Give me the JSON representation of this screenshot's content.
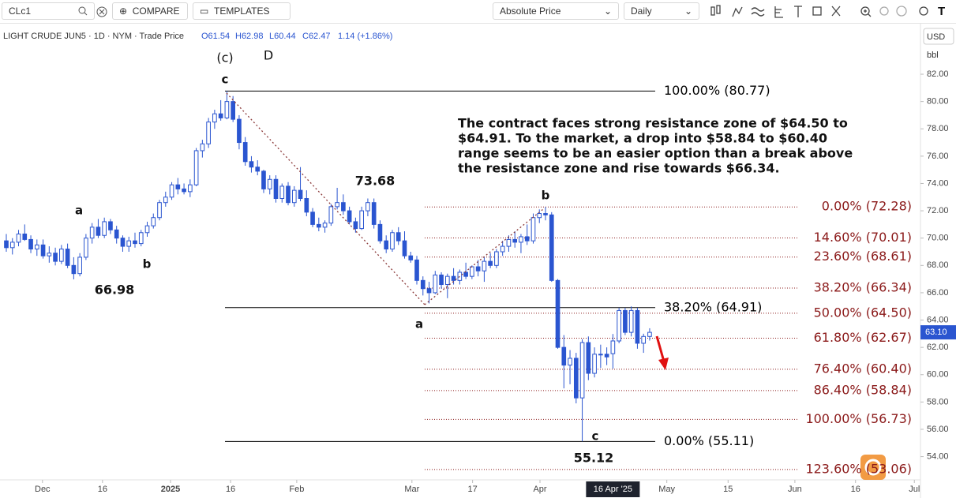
{
  "toolbar": {
    "symbol": "CLc1",
    "compare": "COMPARE",
    "templates": "TEMPLATES",
    "price_mode": "Absolute Price",
    "interval": "Daily"
  },
  "chart_data": {
    "type": "candlestick",
    "header": {
      "instrument": "LIGHT CRUDE JUN5 · 1D · NYM · Trade Price",
      "open": "O61.54",
      "high": "H62.98",
      "low": "L60.44",
      "close": "C62.47",
      "change": "1.14 (+1.86%)"
    },
    "currency": "USD",
    "unit": "bbl",
    "color": "#2a55d0",
    "up_color": "#ffffff",
    "candles": [
      [
        69.8,
        70.3,
        69.0,
        69.3
      ],
      [
        69.3,
        70.0,
        68.8,
        69.7
      ],
      [
        69.7,
        70.6,
        69.4,
        70.3
      ],
      [
        70.3,
        71.0,
        69.8,
        69.9
      ],
      [
        69.9,
        70.2,
        68.9,
        69.2
      ],
      [
        69.2,
        69.9,
        68.7,
        69.5
      ],
      [
        69.5,
        69.9,
        68.5,
        68.7
      ],
      [
        68.7,
        69.4,
        68.2,
        68.9
      ],
      [
        68.9,
        69.3,
        68.0,
        68.3
      ],
      [
        68.3,
        69.5,
        68.1,
        69.2
      ],
      [
        69.2,
        69.6,
        67.8,
        68.0
      ],
      [
        68.0,
        68.6,
        66.98,
        67.4
      ],
      [
        67.4,
        68.9,
        67.2,
        68.6
      ],
      [
        68.6,
        70.3,
        68.4,
        70.0
      ],
      [
        70.0,
        71.1,
        69.6,
        70.8
      ],
      [
        70.8,
        71.4,
        70.0,
        70.2
      ],
      [
        70.2,
        71.5,
        70.0,
        71.2
      ],
      [
        71.2,
        71.4,
        70.3,
        70.6
      ],
      [
        70.6,
        70.9,
        69.6,
        70.0
      ],
      [
        70.0,
        70.2,
        69.0,
        69.4
      ],
      [
        69.4,
        70.1,
        69.0,
        69.8
      ],
      [
        69.8,
        70.4,
        69.3,
        69.6
      ],
      [
        69.6,
        70.6,
        69.4,
        70.4
      ],
      [
        70.4,
        71.2,
        70.1,
        70.9
      ],
      [
        70.9,
        71.8,
        70.7,
        71.5
      ],
      [
        71.5,
        72.8,
        71.3,
        72.6
      ],
      [
        72.6,
        73.4,
        72.3,
        73.0
      ],
      [
        73.0,
        74.1,
        72.8,
        73.9
      ],
      [
        73.9,
        74.4,
        73.2,
        73.6
      ],
      [
        73.6,
        74.0,
        73.2,
        73.4
      ],
      [
        73.4,
        74.3,
        73.0,
        73.9
      ],
      [
        73.9,
        76.6,
        73.8,
        76.4
      ],
      [
        76.4,
        77.2,
        75.9,
        76.9
      ],
      [
        76.9,
        78.8,
        76.6,
        78.5
      ],
      [
        78.5,
        79.4,
        78.0,
        79.1
      ],
      [
        79.1,
        80.1,
        78.6,
        78.8
      ],
      [
        78.8,
        80.77,
        78.7,
        80.0
      ],
      [
        80.0,
        80.4,
        78.5,
        78.7
      ],
      [
        78.7,
        79.0,
        76.5,
        77.0
      ],
      [
        77.0,
        77.4,
        75.3,
        75.6
      ],
      [
        75.6,
        76.0,
        74.8,
        75.2
      ],
      [
        75.2,
        75.7,
        74.6,
        74.9
      ],
      [
        74.9,
        75.0,
        73.3,
        73.6
      ],
      [
        73.6,
        74.6,
        73.2,
        74.3
      ],
      [
        74.3,
        74.6,
        72.6,
        72.9
      ],
      [
        72.9,
        74.0,
        72.6,
        73.8
      ],
      [
        73.8,
        74.1,
        72.4,
        72.6
      ],
      [
        72.6,
        73.8,
        72.3,
        73.5
      ],
      [
        73.5,
        75.2,
        72.7,
        72.9
      ],
      [
        72.9,
        73.5,
        71.6,
        71.9
      ],
      [
        71.9,
        72.2,
        70.8,
        71.0
      ],
      [
        71.0,
        71.5,
        70.5,
        70.8
      ],
      [
        70.8,
        71.3,
        70.4,
        71.1
      ],
      [
        71.1,
        72.5,
        70.9,
        72.3
      ],
      [
        72.3,
        73.68,
        72.1,
        72.6
      ],
      [
        72.6,
        73.2,
        71.7,
        72.0
      ],
      [
        72.0,
        72.3,
        71.0,
        71.2
      ],
      [
        71.2,
        71.5,
        70.4,
        70.7
      ],
      [
        70.7,
        72.3,
        70.6,
        72.0
      ],
      [
        72.0,
        72.9,
        71.6,
        72.6
      ],
      [
        72.6,
        72.9,
        70.7,
        71.0
      ],
      [
        71.0,
        71.3,
        69.6,
        69.8
      ],
      [
        69.8,
        70.2,
        68.9,
        69.2
      ],
      [
        69.2,
        70.6,
        69.0,
        70.4
      ],
      [
        70.4,
        70.8,
        69.5,
        69.8
      ],
      [
        69.8,
        70.5,
        68.5,
        68.7
      ],
      [
        68.7,
        69.0,
        68.2,
        68.4
      ],
      [
        68.4,
        68.7,
        66.6,
        66.9
      ],
      [
        66.9,
        67.2,
        65.8,
        66.3
      ],
      [
        66.3,
        66.8,
        65.22,
        66.0
      ],
      [
        66.0,
        67.6,
        65.9,
        67.3
      ],
      [
        67.3,
        67.5,
        66.3,
        66.6
      ],
      [
        66.6,
        67.4,
        65.6,
        67.2
      ],
      [
        67.2,
        67.8,
        66.6,
        66.9
      ],
      [
        66.9,
        67.7,
        66.6,
        67.5
      ],
      [
        67.5,
        68.2,
        67.0,
        67.2
      ],
      [
        67.2,
        68.0,
        67.0,
        67.9
      ],
      [
        67.9,
        68.4,
        67.2,
        67.6
      ],
      [
        67.6,
        68.6,
        66.8,
        68.3
      ],
      [
        68.3,
        68.9,
        67.8,
        68.0
      ],
      [
        68.0,
        69.2,
        67.8,
        69.0
      ],
      [
        69.0,
        69.8,
        68.7,
        69.4
      ],
      [
        69.4,
        70.2,
        69.0,
        69.9
      ],
      [
        69.9,
        70.5,
        69.3,
        69.7
      ],
      [
        69.7,
        70.3,
        68.9,
        70.1
      ],
      [
        70.1,
        71.0,
        69.5,
        69.8
      ],
      [
        69.8,
        71.8,
        69.6,
        71.5
      ],
      [
        71.5,
        72.1,
        71.1,
        71.8
      ],
      [
        71.8,
        72.28,
        71.3,
        71.7
      ],
      [
        71.7,
        71.9,
        66.8,
        66.9
      ],
      [
        66.9,
        67.0,
        61.9,
        62.0
      ],
      [
        62.0,
        62.9,
        59.0,
        60.7
      ],
      [
        60.7,
        61.8,
        59.3,
        61.2
      ],
      [
        61.2,
        61.6,
        57.9,
        58.3
      ],
      [
        58.3,
        62.6,
        55.12,
        62.35
      ],
      [
        62.35,
        62.8,
        59.6,
        60.1
      ],
      [
        60.1,
        62.0,
        59.8,
        61.5
      ],
      [
        61.5,
        62.2,
        60.5,
        61.5
      ],
      [
        61.5,
        62.0,
        60.7,
        61.3
      ],
      [
        61.54,
        62.98,
        60.44,
        62.47
      ],
      [
        62.47,
        64.9,
        62.3,
        64.7
      ],
      [
        64.7,
        64.9,
        62.9,
        63.1
      ],
      [
        63.1,
        65.0,
        62.8,
        64.7
      ],
      [
        64.7,
        64.9,
        61.9,
        62.3
      ],
      [
        62.3,
        63.0,
        61.6,
        62.8
      ],
      [
        62.8,
        63.4,
        62.5,
        63.1
      ]
    ],
    "xlim": [
      -1.03,
      149.2
    ],
    "xticks": [
      {
        "value": 5.9,
        "label": "Dec"
      },
      {
        "value": 15.7,
        "label": "16"
      },
      {
        "value": 26.8,
        "label": "2025"
      },
      {
        "value": 36.6,
        "label": "16"
      },
      {
        "value": 47.4,
        "label": "Feb"
      },
      {
        "value": 66.2,
        "label": "Mar"
      },
      {
        "value": 76.1,
        "label": "17"
      },
      {
        "value": 87.1,
        "label": "Apr"
      },
      {
        "value": 107.8,
        "label": "May"
      },
      {
        "value": 117.8,
        "label": "15"
      },
      {
        "value": 128.7,
        "label": "Jun"
      },
      {
        "value": 138.6,
        "label": "16"
      },
      {
        "value": 148.2,
        "label": "Jul"
      }
    ],
    "crosshair": {
      "value": 99,
      "label": "16 Apr '25"
    },
    "ylim": [
      52.3,
      85.7
    ],
    "yticks": [
      {
        "value": 54,
        "label": "54.00"
      },
      {
        "value": 56,
        "label": "56.00"
      },
      {
        "value": 58,
        "label": "58.00"
      },
      {
        "value": 60,
        "label": "60.00"
      },
      {
        "value": 62,
        "label": "62.00"
      },
      {
        "value": 64,
        "label": "64.00"
      },
      {
        "value": 66,
        "label": "66.00"
      },
      {
        "value": 68,
        "label": "68.00"
      },
      {
        "value": 70,
        "label": "70.00"
      },
      {
        "value": 72,
        "label": "72.00"
      },
      {
        "value": 74,
        "label": "74.00"
      },
      {
        "value": 76,
        "label": "76.00"
      },
      {
        "value": 78,
        "label": "78.00"
      },
      {
        "value": 80,
        "label": "80.00"
      },
      {
        "value": 82,
        "label": "82.00"
      }
    ],
    "last_price": {
      "value": 63.1,
      "label": "63.10"
    },
    "fib_right": {
      "color": "#8b1a1a",
      "levels": [
        {
          "label": "0.00% (72.28)",
          "value": 72.28
        },
        {
          "label": "14.60% (70.01)",
          "value": 70.01
        },
        {
          "label": "23.60% (68.61)",
          "value": 68.61
        },
        {
          "label": "38.20% (66.34)",
          "value": 66.34
        },
        {
          "label": "50.00% (64.50)",
          "value": 64.5
        },
        {
          "label": "61.80% (62.67)",
          "value": 62.67
        },
        {
          "label": "76.40% (60.40)",
          "value": 60.4
        },
        {
          "label": "86.40% (58.84)",
          "value": 58.84
        },
        {
          "label": "100.00% (56.73)",
          "value": 56.73
        },
        {
          "label": "123.60% (53.06)",
          "value": 53.06
        }
      ]
    },
    "fib_left": {
      "color": "#000000",
      "levels": [
        {
          "label": "100.00% (80.77)",
          "value": 80.77
        },
        {
          "label": "38.20% (64.91)",
          "value": 64.91
        },
        {
          "label": "0.00% (55.11)",
          "value": 55.11
        }
      ]
    },
    "annotations": {
      "wave_c_major": "(c)",
      "wave_D": "D",
      "wave_c_top": "c",
      "wave_a_left": "a",
      "wave_b_left": "b",
      "low_label": "66.98",
      "high_label": "73.68",
      "wave_b_mid": "b",
      "wave_a_mid": "a",
      "wave_c_low": "c",
      "low2_label": "55.12",
      "note": [
        "The contract faces strong resistance zone of $64.50 to",
        "$64.91. To the market, a drop into $58.84 to $60.40",
        "range seems to be an easier option than a break above",
        "the resistance zone and rise towards $66.34."
      ]
    }
  }
}
